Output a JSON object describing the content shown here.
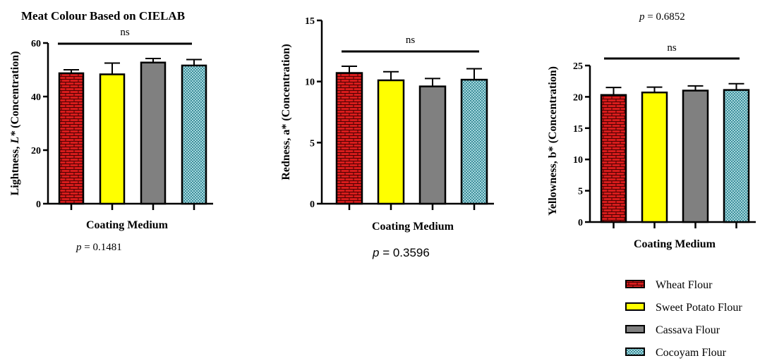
{
  "figure_title": "Meat Colour Based on CIELAB",
  "colors": {
    "wheat": "#d71c1c",
    "sweet_potato": "#ffff00",
    "cassava": "#808080",
    "cocoyam": "#a6d8de",
    "axis": "#000000"
  },
  "legend": [
    {
      "label": "Wheat Flour",
      "pattern": "brick",
      "color": "#d71c1c"
    },
    {
      "label": "Sweet Potato Flour",
      "pattern": "solid",
      "color": "#ffff00"
    },
    {
      "label": "Cassava Flour",
      "pattern": "solid",
      "color": "#808080"
    },
    {
      "label": "Cocoyam Flour",
      "pattern": "check",
      "color": "#a6d8de"
    }
  ],
  "chart_data": [
    {
      "type": "bar",
      "categories": [
        "Wheat Flour",
        "Sweet Potato Flour",
        "Cassava Flour",
        "Cocoyam Flour"
      ],
      "values": [
        48.7,
        48.3,
        52.7,
        51.6
      ],
      "errors": [
        1.3,
        4.2,
        1.5,
        2.2
      ],
      "ylabel_parts": [
        {
          "text": "Lightness, ",
          "italic": false
        },
        {
          "text": "L*",
          "italic": true
        },
        {
          "text": " (Concentration)",
          "italic": false
        }
      ],
      "xlabel": "Coating Medium",
      "ylim": [
        0,
        60
      ],
      "yticks": [
        0,
        20,
        40,
        60
      ],
      "significance": "ns",
      "p_var": "p",
      "p_value": " = 0.1481",
      "grid": false,
      "legend_position": "right"
    },
    {
      "type": "bar",
      "categories": [
        "Wheat Flour",
        "Sweet Potato Flour",
        "Cassava Flour",
        "Cocoyam Flour"
      ],
      "values": [
        10.7,
        10.1,
        9.6,
        10.15
      ],
      "errors": [
        0.55,
        0.7,
        0.65,
        0.9
      ],
      "ylabel_parts": [
        {
          "text": "Redness, a* (Concentration)",
          "italic": false
        }
      ],
      "xlabel": "Coating Medium",
      "ylim": [
        0,
        15
      ],
      "yticks": [
        0,
        5,
        10,
        15
      ],
      "significance": "ns",
      "p_var": "p",
      "p_value": " = 0.3596",
      "grid": false,
      "legend_position": "right"
    },
    {
      "type": "bar",
      "categories": [
        "Wheat Flour",
        "Sweet Potato Flour",
        "Cassava Flour",
        "Cocoyam Flour"
      ],
      "values": [
        20.3,
        20.7,
        21.0,
        21.1
      ],
      "errors": [
        1.2,
        0.85,
        0.75,
        1.0
      ],
      "ylabel_parts": [
        {
          "text": "Yellowness, b* (Concentration)",
          "italic": false
        }
      ],
      "xlabel": "Coating Medium",
      "ylim": [
        0,
        25
      ],
      "yticks": [
        0,
        5,
        10,
        15,
        20,
        25
      ],
      "significance": "ns",
      "p_var": "p",
      "p_value": " = 0.6852",
      "grid": false,
      "legend_position": "right"
    }
  ]
}
